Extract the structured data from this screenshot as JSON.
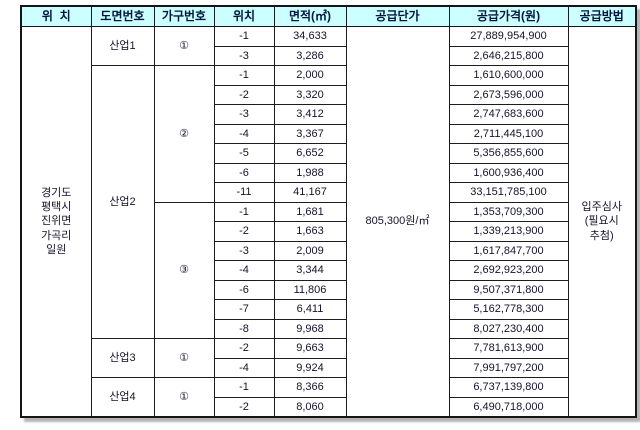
{
  "colors": {
    "header_bg": "#ccffff",
    "border": "#1c1c1c",
    "text": "#14142d",
    "shadow": "#b4b4b4"
  },
  "table": {
    "headers": [
      "위  치",
      "도면번호",
      "가구번호",
      "위치",
      "면적(㎡)",
      "공급단가",
      "공급가격(원)",
      "공급방법"
    ],
    "location_lines": [
      "경기도",
      "평택시",
      "진위면",
      "가곡리",
      "일원"
    ],
    "unit_price": "805,300원/㎡",
    "supply_method_lines": [
      "입주심사",
      "(필요시",
      "추첨)"
    ],
    "groups": [
      {
        "plan": "산업1",
        "units": [
          {
            "no": "①",
            "rows": [
              [
                "-1",
                "34,633",
                "27,889,954,900"
              ],
              [
                "-3",
                "3,286",
                "2,646,215,800"
              ]
            ]
          }
        ]
      },
      {
        "plan": "산업2",
        "units": [
          {
            "no": "②",
            "rows": [
              [
                "-1",
                "2,000",
                "1,610,600,000"
              ],
              [
                "-2",
                "3,320",
                "2,673,596,000"
              ],
              [
                "-3",
                "3,412",
                "2,747,683,600"
              ],
              [
                "-4",
                "3,367",
                "2,711,445,100"
              ],
              [
                "-5",
                "6,652",
                "5,356,855,600"
              ],
              [
                "-6",
                "1,988",
                "1,600,936,400"
              ],
              [
                "-11",
                "41,167",
                "33,151,785,100"
              ]
            ]
          },
          {
            "no": "③",
            "rows": [
              [
                "-1",
                "1,681",
                "1,353,709,300"
              ],
              [
                "-2",
                "1,663",
                "1,339,213,900"
              ],
              [
                "-3",
                "2,009",
                "1,617,847,700"
              ],
              [
                "-4",
                "3,344",
                "2,692,923,200"
              ],
              [
                "-6",
                "11,806",
                "9,507,371,800"
              ],
              [
                "-7",
                "6,411",
                "5,162,778,300"
              ],
              [
                "-8",
                "9,968",
                "8,027,230,400"
              ]
            ]
          }
        ]
      },
      {
        "plan": "산업3",
        "units": [
          {
            "no": "①",
            "rows": [
              [
                "-2",
                "9,663",
                "7,781,613,900"
              ],
              [
                "-4",
                "9,924",
                "7,991,797,200"
              ]
            ]
          }
        ]
      },
      {
        "plan": "산업4",
        "units": [
          {
            "no": "①",
            "rows": [
              [
                "-1",
                "8,366",
                "6,737,139,800"
              ],
              [
                "-2",
                "8,060",
                "6,490,718,000"
              ]
            ]
          }
        ]
      }
    ]
  }
}
